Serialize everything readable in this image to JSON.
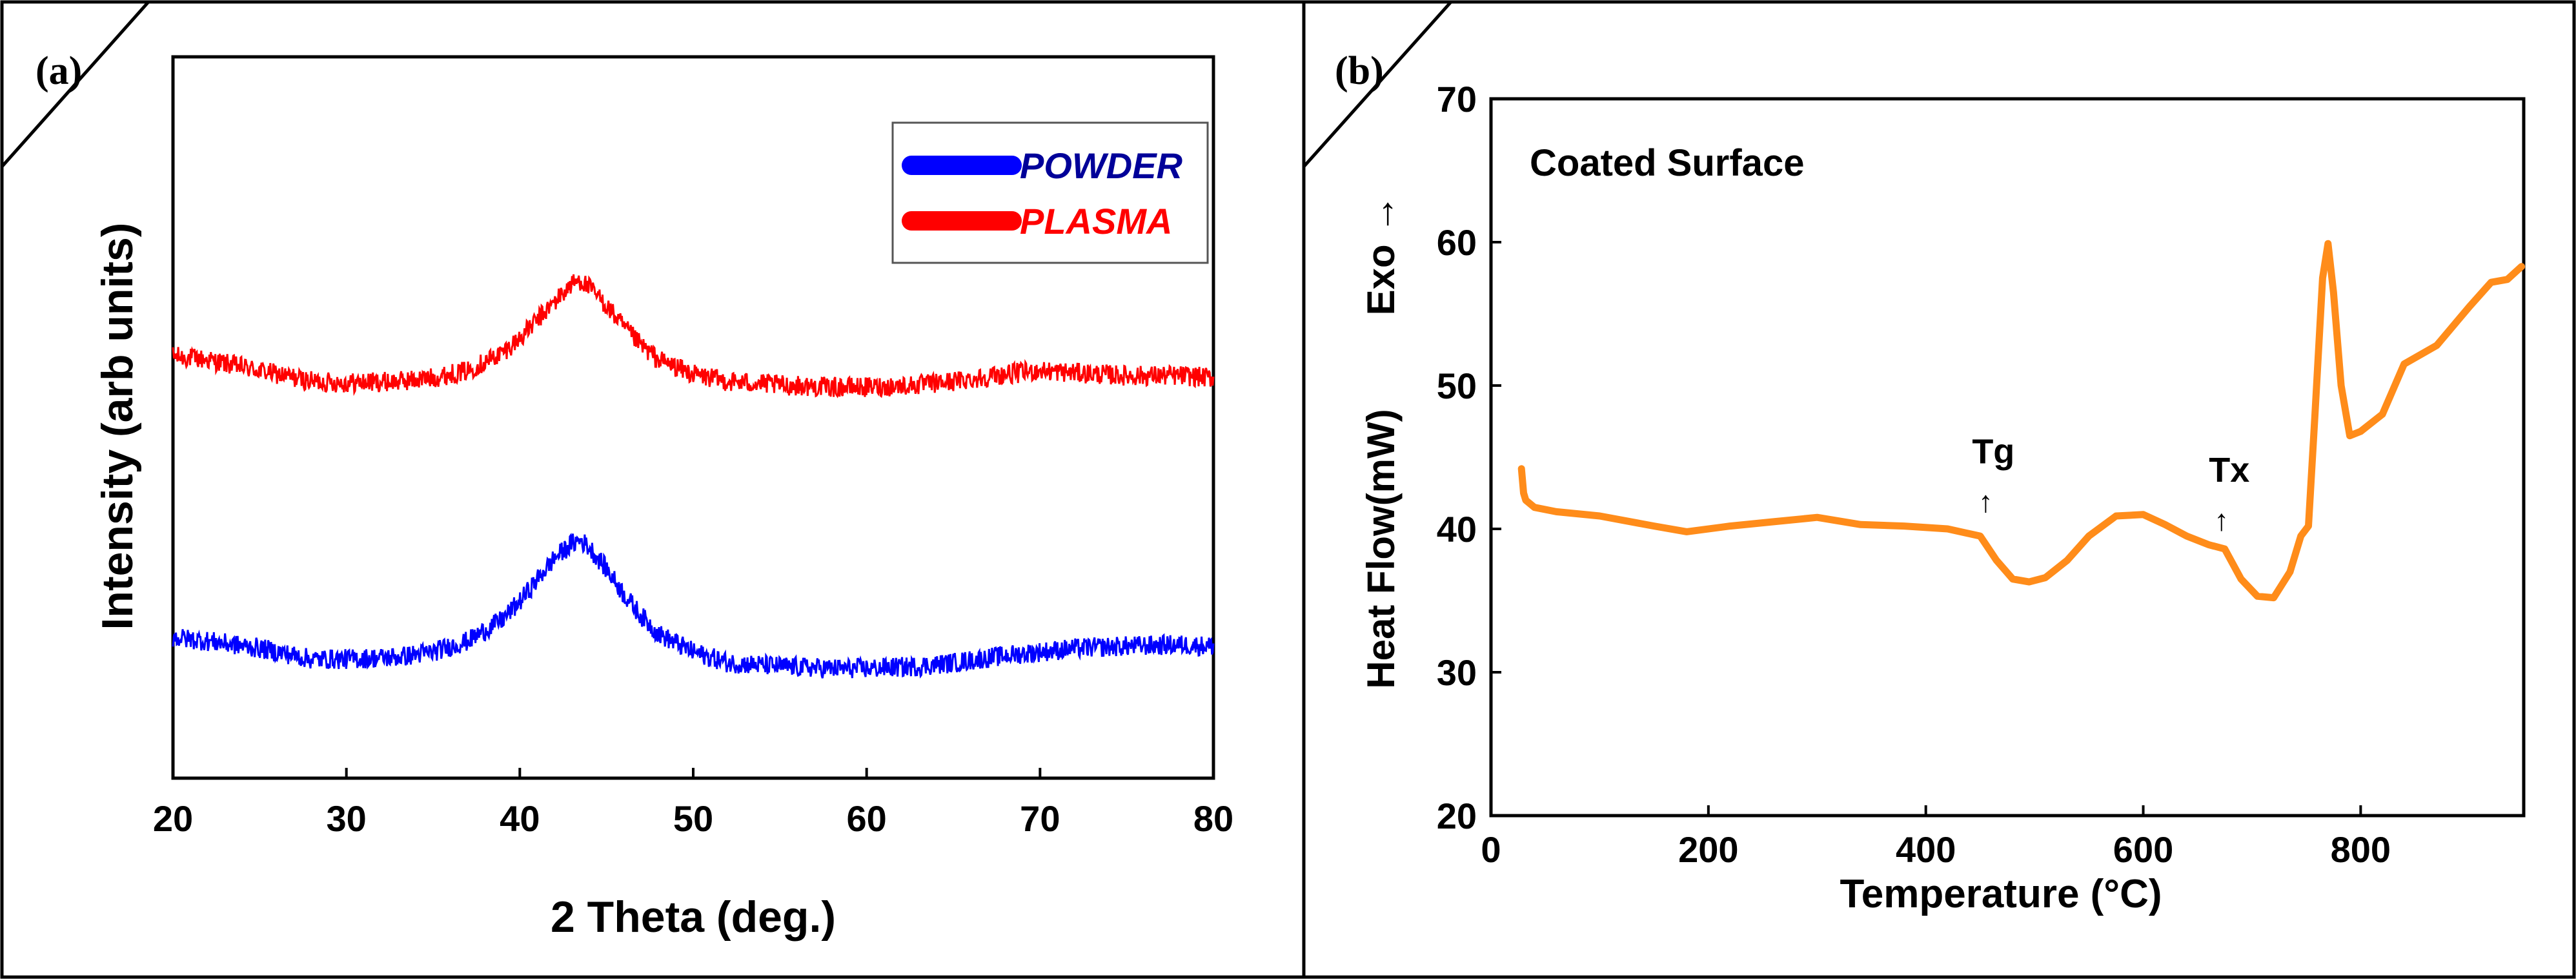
{
  "figure": {
    "panel_a_label": "(a)",
    "panel_b_label": "(b)"
  },
  "colors": {
    "powder": "#0000ff",
    "plasma": "#ff0000",
    "dsc": "#ff8c1a",
    "frame": "#000000",
    "powder_label": "#000099",
    "plasma_label": "#ff0000"
  },
  "chart_data": [
    {
      "type": "line",
      "title": "",
      "xlabel": "2 Theta (deg.)",
      "ylabel": "Intensity (arb units)",
      "xlim": [
        20,
        80
      ],
      "ylim": [
        0,
        1
      ],
      "xticks": [
        20,
        30,
        40,
        50,
        60,
        70,
        80
      ],
      "legend": [
        "POWDER",
        "PLASMA"
      ],
      "legend_position": "top-right",
      "y_tick_labels_shown": false,
      "series": [
        {
          "name": "PLASMA",
          "color": "#ff0000",
          "x": [
            20,
            22,
            25,
            28,
            30,
            33,
            35,
            37,
            39,
            40,
            41,
            42,
            43,
            43.5,
            44,
            45,
            46,
            47,
            48,
            50,
            52,
            55,
            58,
            60,
            63,
            65,
            68,
            70,
            72,
            75,
            78,
            80
          ],
          "y": [
            0.585,
            0.58,
            0.565,
            0.55,
            0.548,
            0.55,
            0.555,
            0.565,
            0.59,
            0.61,
            0.635,
            0.66,
            0.685,
            0.69,
            0.68,
            0.655,
            0.625,
            0.6,
            0.58,
            0.56,
            0.55,
            0.545,
            0.542,
            0.542,
            0.545,
            0.55,
            0.56,
            0.565,
            0.562,
            0.558,
            0.558,
            0.555
          ]
        },
        {
          "name": "POWDER",
          "color": "#0000ff",
          "x": [
            20,
            22,
            25,
            28,
            30,
            33,
            35,
            37,
            39,
            40,
            41,
            42,
            43,
            43.5,
            44,
            45,
            46,
            47,
            48,
            50,
            52,
            55,
            58,
            60,
            63,
            65,
            68,
            70,
            72,
            75,
            78,
            80
          ],
          "y": [
            0.195,
            0.19,
            0.18,
            0.165,
            0.165,
            0.168,
            0.175,
            0.19,
            0.22,
            0.245,
            0.275,
            0.305,
            0.325,
            0.33,
            0.32,
            0.29,
            0.255,
            0.225,
            0.2,
            0.175,
            0.16,
            0.155,
            0.152,
            0.152,
            0.155,
            0.16,
            0.17,
            0.175,
            0.18,
            0.183,
            0.185,
            0.183
          ]
        }
      ]
    },
    {
      "type": "line",
      "title": "Coated Surface",
      "xlabel": "Temperature (°C)",
      "ylabel": "Heat Flow(mW)",
      "y_extra_label": "Exo →",
      "xlim": [
        0,
        950
      ],
      "ylim": [
        20,
        70
      ],
      "xticks": [
        0,
        200,
        400,
        600,
        800
      ],
      "yticks": [
        20,
        30,
        40,
        50,
        60,
        70
      ],
      "annotations": [
        {
          "text": "Tg",
          "marker": "↑",
          "x": 455,
          "y": 40.3
        },
        {
          "text": "Tx",
          "marker": "↑",
          "x": 672,
          "y": 39.0
        }
      ],
      "series": [
        {
          "name": "Coated Surface",
          "color": "#ff8c1a",
          "x": [
            28,
            30,
            32,
            40,
            60,
            100,
            150,
            180,
            220,
            260,
            300,
            340,
            380,
            420,
            450,
            465,
            480,
            495,
            510,
            530,
            550,
            575,
            600,
            620,
            640,
            660,
            675,
            690,
            705,
            720,
            735,
            745,
            752,
            758,
            765,
            770,
            775,
            782,
            790,
            800,
            820,
            840,
            870,
            900,
            920,
            935,
            948
          ],
          "y": [
            44.2,
            42.5,
            42.0,
            41.5,
            41.2,
            40.9,
            40.2,
            39.8,
            40.2,
            40.5,
            40.8,
            40.3,
            40.2,
            40.0,
            39.5,
            37.8,
            36.5,
            36.3,
            36.6,
            37.8,
            39.5,
            40.9,
            41.0,
            40.3,
            39.5,
            38.9,
            38.6,
            36.5,
            35.3,
            35.2,
            37.0,
            39.5,
            40.2,
            48.0,
            57.5,
            59.9,
            56.5,
            50.0,
            46.5,
            46.8,
            48.0,
            51.5,
            52.8,
            55.5,
            57.2,
            57.4,
            58.3
          ]
        }
      ]
    }
  ]
}
